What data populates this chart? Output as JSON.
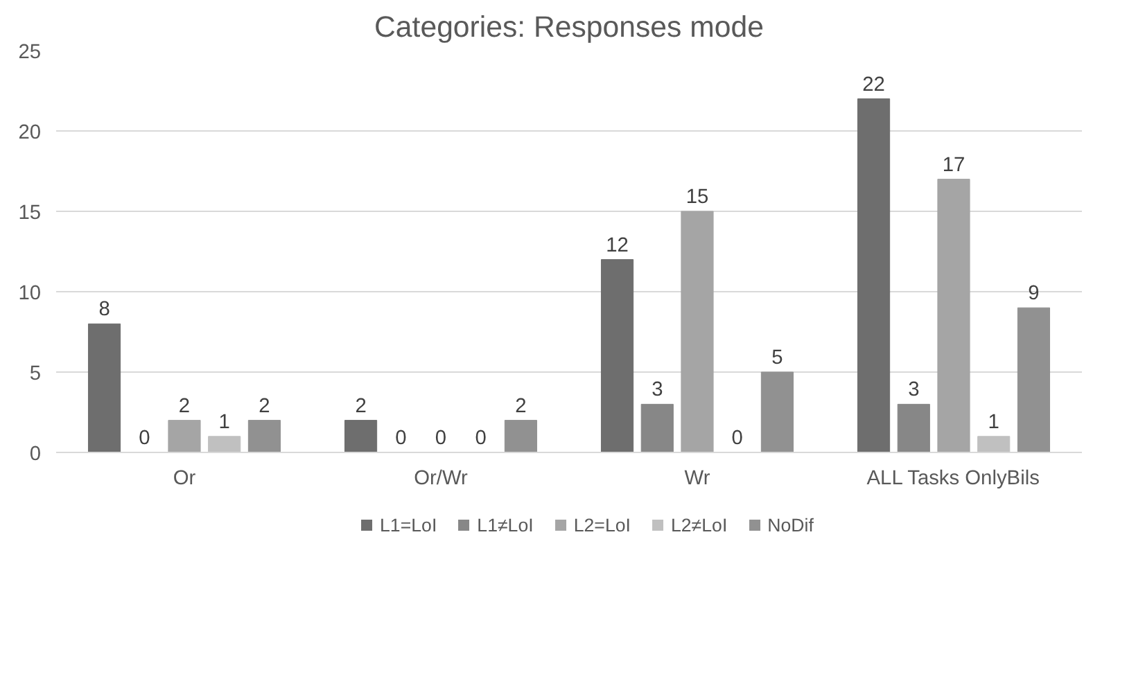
{
  "chart_data": {
    "type": "bar",
    "title": "Categories: Responses mode",
    "categories": [
      "Or",
      "Or/Wr",
      "Wr",
      "ALL Tasks OnlyBils"
    ],
    "series": [
      {
        "name": "L1=LoI",
        "color": "#6e6e6e",
        "values": [
          8,
          2,
          12,
          22
        ]
      },
      {
        "name": "L1≠LoI",
        "color": "#878787",
        "values": [
          0,
          0,
          3,
          3
        ]
      },
      {
        "name": "L2=LoI",
        "color": "#a5a5a5",
        "values": [
          2,
          0,
          15,
          17
        ]
      },
      {
        "name": "L2≠LoI",
        "color": "#c0c0c0",
        "values": [
          1,
          0,
          0,
          1
        ]
      },
      {
        "name": "NoDif",
        "color": "#919191",
        "values": [
          2,
          2,
          5,
          9
        ]
      }
    ],
    "ylim": [
      0,
      25
    ],
    "yticks": [
      0,
      5,
      10,
      15,
      20,
      25
    ],
    "grid": "y",
    "legend": "bottom",
    "data_labels": true
  }
}
